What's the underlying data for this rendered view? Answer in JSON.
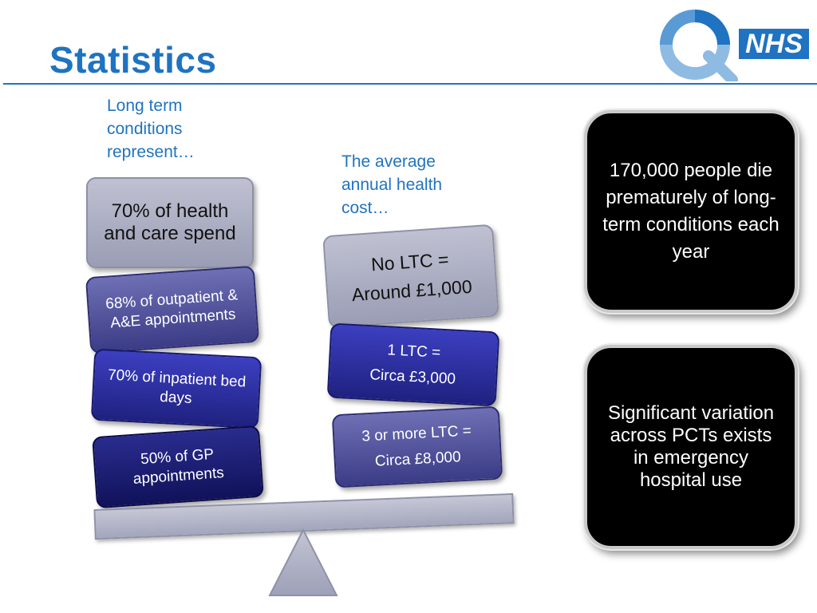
{
  "slide": {
    "title": "Statistics"
  },
  "logo": {
    "text": "NHS",
    "colors": {
      "ring": "#1f73c1",
      "ring_light": "#8fbbe3",
      "box": "#1f73c1"
    }
  },
  "left_column": {
    "intro": "Long term conditions represent…",
    "blocks": [
      {
        "text": "70% of health and care spend"
      },
      {
        "text": "68% of outpatient & A&E appointments"
      },
      {
        "text": "70% of inpatient bed days"
      },
      {
        "text": "50% of GP appointments"
      }
    ]
  },
  "middle_column": {
    "intro": "The average annual health cost…",
    "blocks": [
      {
        "line1": "No LTC =",
        "line2": "Around £1,000"
      },
      {
        "line1": "1 LTC =",
        "line2": "Circa £3,000"
      },
      {
        "line1": "3 or more LTC =",
        "line2": "Circa £8,000"
      }
    ]
  },
  "right_column": {
    "callouts": [
      {
        "text": "170,000 people die prematurely of long-term conditions each year"
      },
      {
        "text": "Significant variation across PCTs exists in emergency hospital use"
      }
    ]
  },
  "colors": {
    "accent": "#1f73c1",
    "grey_block": "#a9abc0",
    "violet_block": "#4a4b98",
    "blue_block": "#2a2ca8",
    "navy_block": "#171a6c",
    "callout": "#000000"
  }
}
